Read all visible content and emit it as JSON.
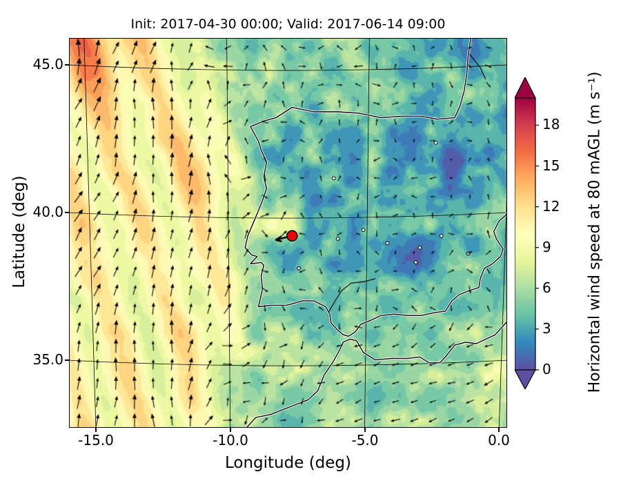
{
  "title": "Init: 2017-04-30 00:00; Valid: 2017-06-14 09:00",
  "axes": {
    "xlabel": "Longitude (deg)",
    "ylabel": "Latitude (deg)",
    "xticks": [
      "-15.0",
      "-10.0",
      "-5.0",
      "0.0"
    ],
    "yticks": [
      "45.0",
      "40.0",
      "35.0"
    ]
  },
  "colorbar": {
    "label": "Horizontal wind speed at 80 mAGL (m s⁻¹)",
    "tick_labels": [
      "18",
      "15",
      "12",
      "9",
      "6",
      "3",
      "0"
    ],
    "tick_values": [
      18,
      15,
      12,
      9,
      6,
      3,
      0
    ],
    "vmin": 0,
    "vmax": 20,
    "colormap_name": "Spectral_r",
    "colormap": [
      "#5e4fa2",
      "#3288bd",
      "#66c2a5",
      "#abdda4",
      "#e6f598",
      "#ffffbf",
      "#fee08b",
      "#fdae61",
      "#f46d43",
      "#d53e4f",
      "#9e0142"
    ],
    "under_color": "#5e4fa2",
    "over_color": "#9e0142"
  },
  "chart_data": {
    "type": "heatmap",
    "title": "Init: 2017-04-30 00:00; Valid: 2017-06-14 09:00",
    "xlabel": "Longitude (deg)",
    "ylabel": "Latitude (deg)",
    "xlim": [
      -16.0,
      0.3
    ],
    "ylim": [
      32.9,
      46.1
    ],
    "xticks": [
      -15.0,
      -10.0,
      -5.0,
      0.0
    ],
    "yticks": [
      35.0,
      40.0,
      45.0
    ],
    "colorbar_label": "Horizontal wind speed at 80 mAGL (m s⁻¹)",
    "colorbar_ticks": [
      0,
      3,
      6,
      9,
      12,
      15,
      18
    ],
    "colormap": "Spectral_r",
    "units": "m s⁻¹",
    "init_time": "2017-04-30 00:00",
    "valid_time": "2017-06-14 09:00",
    "region": "Iberian Peninsula and eastern North Atlantic",
    "marker": {
      "lon": -7.7,
      "lat": 39.4,
      "style": "red filled circle with black edge"
    },
    "overlays": [
      "wind vector arrows (quiver)",
      "coastlines",
      "graticule grid lines"
    ],
    "wind_speed_estimates": {
      "lons": [
        -15,
        -13,
        -11,
        -9,
        -7,
        -5,
        -3,
        -1
      ],
      "lats": [
        45,
        43,
        41,
        39,
        37,
        35
      ],
      "values_m_per_s": [
        [
          13,
          11,
          9,
          6,
          5,
          5,
          3,
          5
        ],
        [
          11,
          10,
          10,
          6,
          3,
          2,
          2,
          3
        ],
        [
          10,
          10,
          12,
          9,
          2,
          2,
          1,
          2
        ],
        [
          10,
          10,
          9,
          5,
          2,
          2,
          2,
          3
        ],
        [
          10,
          10,
          9,
          6,
          2,
          3,
          5,
          5
        ],
        [
          11,
          11,
          9,
          7,
          6,
          5,
          6,
          5
        ]
      ]
    }
  }
}
